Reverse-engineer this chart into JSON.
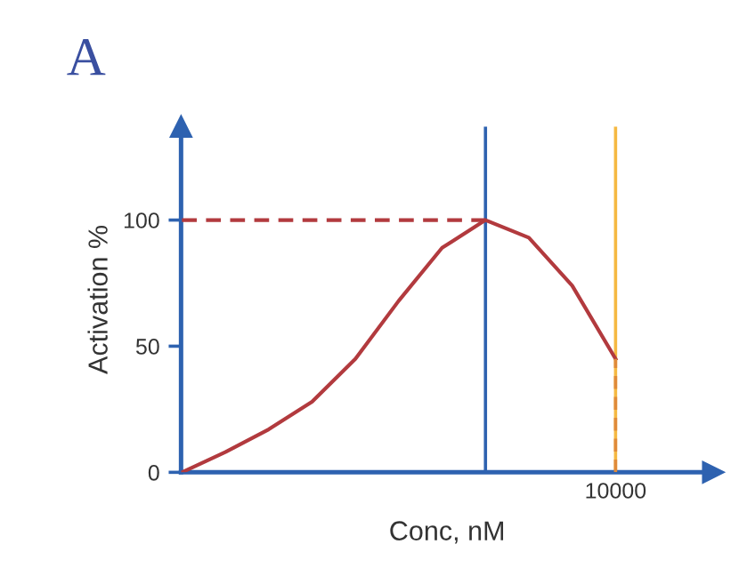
{
  "chart_data": {
    "type": "line",
    "title": "A",
    "xlabel": "Conc, nM",
    "ylabel": "Activation %",
    "categories": [
      null,
      null,
      null,
      null,
      null,
      null,
      null,
      null,
      null,
      null,
      null
    ],
    "ylim": [
      0,
      137
    ],
    "yticks": [
      0,
      50,
      100
    ],
    "grid": false,
    "marker": "none",
    "annotations": [
      "10000"
    ],
    "series": [
      {
        "values": [
          0,
          8,
          17,
          28,
          45,
          68,
          89,
          100,
          93,
          74,
          45
        ],
        "color": "#b23a3e",
        "line_style": "solid",
        "errors": [
          null,
          null,
          null,
          null,
          null,
          null,
          null,
          null,
          null,
          null,
          [
            0,
            45
          ]
        ]
      },
      {
        "values": [
          100,
          100,
          100,
          100,
          100,
          100,
          100,
          100,
          null,
          null,
          null
        ],
        "color": "#b23a3e",
        "line_style": "dashed"
      }
    ]
  }
}
